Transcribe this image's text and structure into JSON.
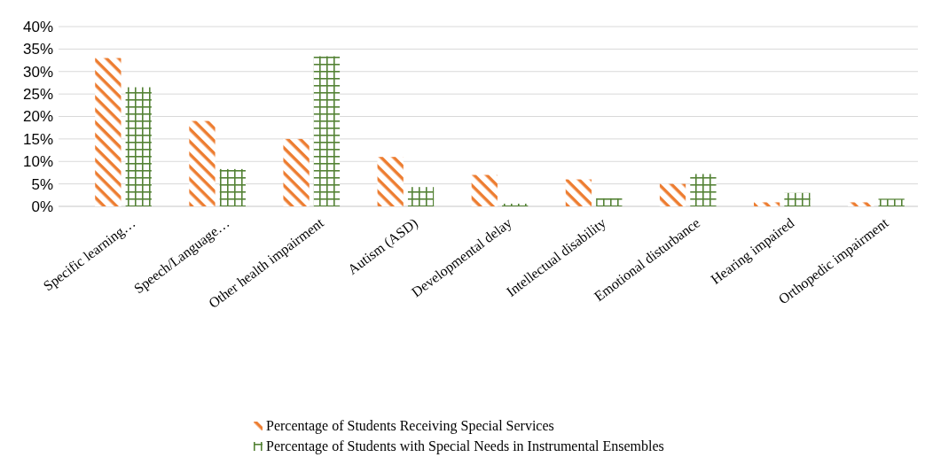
{
  "chart_data": {
    "type": "bar",
    "categories": [
      "Specific learning…",
      "Speech/Language…",
      "Other health impairment",
      "Autism (ASD)",
      "Developmental delay",
      "Intellectual disability",
      "Emotional disturbance",
      "Hearing impaired",
      "Orthopedic impairment"
    ],
    "series": [
      {
        "name": "Percentage of Students Receiving Special Services",
        "color": "#ed7d31",
        "values": [
          33,
          19,
          15,
          11,
          7,
          6,
          5,
          0.9,
          0.9
        ]
      },
      {
        "name": "Percentage of Students with Special Needs in Instrumental Ensembles",
        "color": "#548235",
        "values": [
          26.5,
          8.3,
          33.4,
          4.3,
          0.6,
          1.8,
          7.2,
          3,
          1.7
        ]
      }
    ],
    "ylim": [
      0,
      40
    ],
    "yticks": [
      {
        "value": 0,
        "label": "0%"
      },
      {
        "value": 5,
        "label": "5%"
      },
      {
        "value": 10,
        "label": "10%"
      },
      {
        "value": 15,
        "label": "15%"
      },
      {
        "value": 20,
        "label": "20%"
      },
      {
        "value": 25,
        "label": "25%"
      },
      {
        "value": 30,
        "label": "30%"
      },
      {
        "value": 35,
        "label": "35%"
      },
      {
        "value": 40,
        "label": "40%"
      }
    ],
    "grid": "y",
    "legend": "bottom"
  }
}
